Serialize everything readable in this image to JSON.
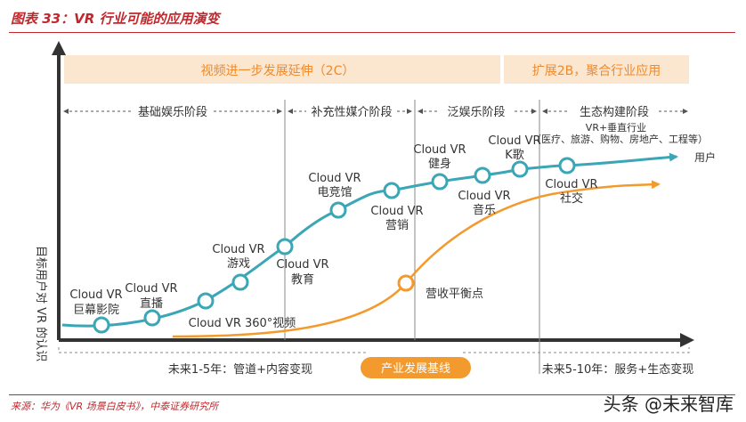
{
  "figure_title": "图表 33：VR 行业可能的应用演变",
  "top_bands": {
    "left": "视频进一步发展延伸（2C）",
    "right": "扩展2B，聚合行业应用"
  },
  "stages": [
    "基础娱乐阶段",
    "补充性媒介阶段",
    "泛娱乐阶段",
    "生态构建阶段"
  ],
  "stage_note": "VR+垂直行业（医疗、旅游、购物、房地产、工程等）",
  "y_axis_label": "目标用户对 VR 的认识",
  "series_label": "用户",
  "nodes": [
    {
      "line1": "Cloud VR",
      "line2": "巨幕影院"
    },
    {
      "line1": "Cloud VR",
      "line2": "直播"
    },
    {
      "line1": "Cloud VR 360°视频",
      "line2": ""
    },
    {
      "line1": "Cloud VR",
      "line2": "游戏"
    },
    {
      "line1": "Cloud VR",
      "line2": "教育"
    },
    {
      "line1": "Cloud VR",
      "line2": "电竞馆"
    },
    {
      "line1": "Cloud VR",
      "line2": "营销"
    },
    {
      "line1": "Cloud VR",
      "line2": "健身"
    },
    {
      "line1": "Cloud VR",
      "line2": "音乐"
    },
    {
      "line1": "Cloud VR",
      "line2": "K歌"
    },
    {
      "line1": "Cloud VR",
      "line2": "社交"
    }
  ],
  "revenue_node": "营收平衡点",
  "bottom_left": "未来1-5年：管道+内容变现",
  "bottom_center": "产业发展基线",
  "bottom_right": "未来5-10年：服务+生态变现",
  "source": "来源：华为《VR 场景白皮书》，中泰证券研究所",
  "watermark": "头条 @未来智库",
  "colors": {
    "title_red": "#c0282d",
    "teal": "#3aa6b6",
    "orange": "#f39a2e",
    "band": "#fbe6d0"
  }
}
